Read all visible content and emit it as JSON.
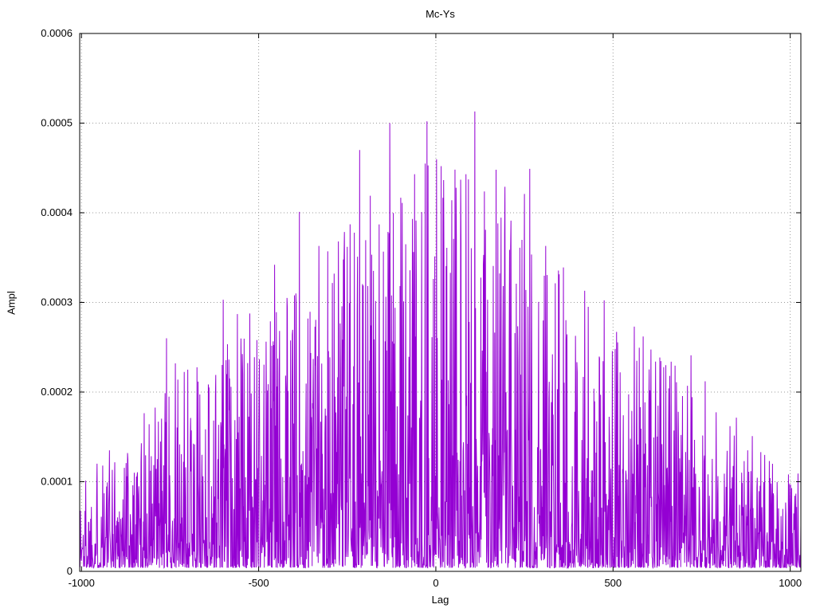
{
  "chart_data": {
    "type": "line",
    "title": "Mc-Ys",
    "xlabel": "Lag",
    "ylabel": "Ampl",
    "xlim": [
      -1005,
      1030
    ],
    "ylim": [
      0,
      0.0006
    ],
    "x_ticks": [
      {
        "value": -1000,
        "label": "-1000"
      },
      {
        "value": -500,
        "label": "-500"
      },
      {
        "value": 0,
        "label": "0"
      },
      {
        "value": 500,
        "label": "500"
      },
      {
        "value": 1000,
        "label": "1000"
      }
    ],
    "y_ticks": [
      {
        "value": 0,
        "label": "0"
      },
      {
        "value": 0.0001,
        "label": "0.0001"
      },
      {
        "value": 0.0002,
        "label": "0.0002"
      },
      {
        "value": 0.0003,
        "label": "0.0003"
      },
      {
        "value": 0.0004,
        "label": "0.0004"
      },
      {
        "value": 0.0005,
        "label": "0.0005"
      },
      {
        "value": 0.0006,
        "label": "0.0006"
      }
    ],
    "grid": true,
    "legend": "none",
    "line_color": "#9400D3",
    "grid_color": "#9a9a9a",
    "axis_color": "#000000",
    "background_color": "#ffffff",
    "series": [
      {
        "name": "Mc-Ys",
        "style": "noisy-spikes-with-triangular-envelope",
        "synthesis": {
          "seed": 1337,
          "n_points": 2036,
          "envelope_edge": 0.000105,
          "envelope_center": 0.00047,
          "sparsity_exponent": 2.8,
          "floor": 4e-06
        },
        "notable_peaks": [
          {
            "x": -940,
            "y": 0.000118
          },
          {
            "x": -870,
            "y": 0.000132
          },
          {
            "x": -760,
            "y": 0.00026
          },
          {
            "x": -735,
            "y": 0.000232
          },
          {
            "x": -700,
            "y": 0.000225
          },
          {
            "x": -640,
            "y": 0.000205
          },
          {
            "x": -600,
            "y": 0.000303
          },
          {
            "x": -560,
            "y": 0.000287
          },
          {
            "x": -505,
            "y": 0.000258
          },
          {
            "x": -455,
            "y": 0.000342
          },
          {
            "x": -420,
            "y": 0.000305
          },
          {
            "x": -385,
            "y": 0.000401
          },
          {
            "x": -330,
            "y": 0.000363
          },
          {
            "x": -305,
            "y": 0.000357
          },
          {
            "x": -250,
            "y": 0.000362
          },
          {
            "x": -215,
            "y": 0.00047
          },
          {
            "x": -185,
            "y": 0.000419
          },
          {
            "x": -160,
            "y": 0.000387
          },
          {
            "x": -130,
            "y": 0.0005
          },
          {
            "x": -95,
            "y": 0.000411
          },
          {
            "x": -60,
            "y": 0.000443
          },
          {
            "x": -25,
            "y": 0.000502
          },
          {
            "x": 15,
            "y": 0.000452
          },
          {
            "x": 45,
            "y": 0.000414
          },
          {
            "x": 85,
            "y": 0.000443
          },
          {
            "x": 110,
            "y": 0.000513
          },
          {
            "x": 140,
            "y": 0.000381
          },
          {
            "x": 170,
            "y": 0.000448
          },
          {
            "x": 195,
            "y": 0.000429
          },
          {
            "x": 250,
            "y": 0.000421
          },
          {
            "x": 265,
            "y": 0.000449
          },
          {
            "x": 310,
            "y": 0.000363
          },
          {
            "x": 360,
            "y": 0.000339
          },
          {
            "x": 420,
            "y": 0.000313
          },
          {
            "x": 465,
            "y": 0.000197
          },
          {
            "x": 520,
            "y": 0.000222
          },
          {
            "x": 560,
            "y": 0.000273
          },
          {
            "x": 585,
            "y": 0.000262
          },
          {
            "x": 620,
            "y": 0.000234
          },
          {
            "x": 660,
            "y": 0.000218
          },
          {
            "x": 720,
            "y": 0.000241
          },
          {
            "x": 760,
            "y": 0.000212
          },
          {
            "x": 830,
            "y": 0.000162
          },
          {
            "x": 880,
            "y": 0.000135
          },
          {
            "x": 950,
            "y": 0.00012
          }
        ]
      }
    ]
  }
}
